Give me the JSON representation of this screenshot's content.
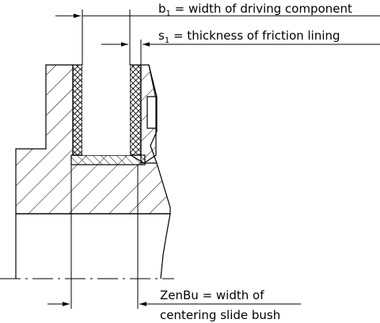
{
  "labels": {
    "b1": {
      "sym": "b",
      "sub": "1",
      "text": " = width of driving component"
    },
    "s1": {
      "sym": "s",
      "sub": "1",
      "text": " = thickness of friction lining"
    },
    "zenbu": {
      "line1": "ZenBu = width of",
      "line2": "centering slide bush"
    }
  }
}
